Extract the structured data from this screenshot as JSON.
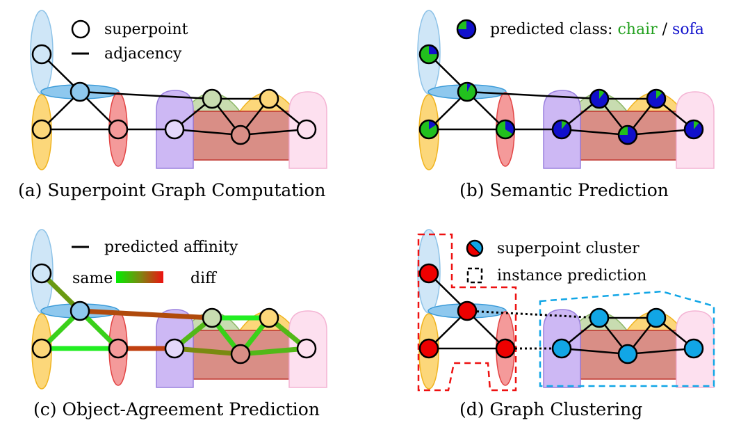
{
  "panels": {
    "a": {
      "caption": "(a) Superpoint Graph Computation",
      "legend_node": "superpoint",
      "legend_edge": "adjacency"
    },
    "b": {
      "caption": "(b) Semantic Prediction",
      "legend_prefix": "predicted class: ",
      "legend_class1": "chair",
      "legend_sep": " / ",
      "legend_class2": "sofa"
    },
    "c": {
      "caption": "(c) Object-Agreement Prediction",
      "legend_edge": "predicted affinity",
      "legend_same": "same",
      "legend_diff": "diff"
    },
    "d": {
      "caption": "(d) Graph Clustering",
      "legend_cluster": "superpoint cluster",
      "legend_instance": "instance prediction"
    }
  },
  "colors": {
    "chair": "#22c01e",
    "sofa": "#1010cc",
    "cluster_red": "#ee0000",
    "cluster_blue": "#11a6e6",
    "affinity_same": "#00ee00",
    "affinity_diff": "#ee1111"
  },
  "icons": {
    "legend_pie": "pie-chart-icon",
    "legend_cluster": "split-circle-icon",
    "legend_instance": "dashed-square-icon"
  }
}
